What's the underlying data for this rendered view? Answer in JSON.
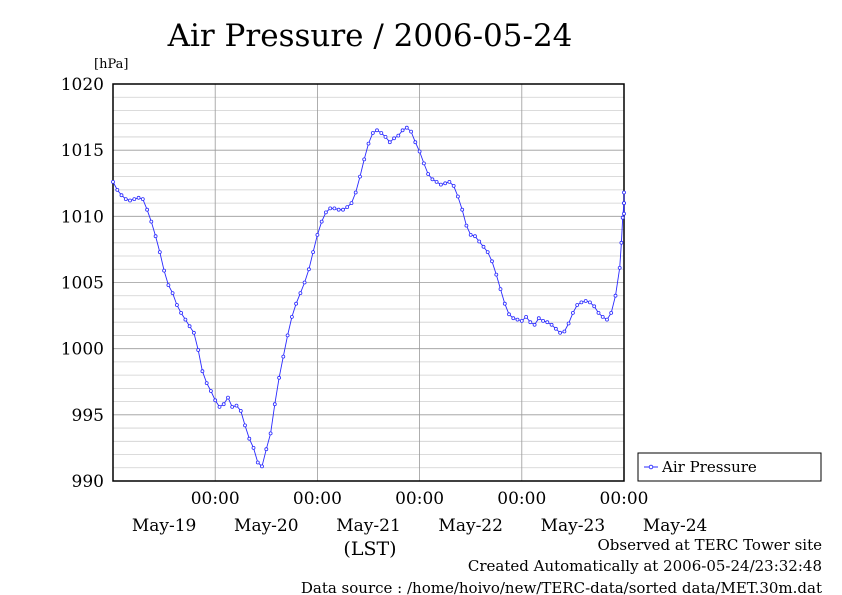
{
  "chart_data": {
    "type": "line",
    "title": "Air Pressure / 2006-05-24",
    "ylabel": "[hPa]",
    "xlabel": "(LST)",
    "ylim": [
      990,
      1020
    ],
    "yticks": [
      "990",
      "995",
      "1000",
      "1005",
      "1010",
      "1015",
      "1020"
    ],
    "xlim_hours": [
      -96,
      24
    ],
    "time_ticks": [
      "00:00",
      "00:00",
      "00:00",
      "00:00",
      "00:00"
    ],
    "date_labels": [
      "May-19",
      "May-20",
      "May-21",
      "May-22",
      "May-23",
      "May-24"
    ],
    "grid": true,
    "legend_position": "right",
    "series": [
      {
        "name": "Air Pressure",
        "color": "#2a2aff",
        "marker": "circle",
        "points": [
          [
            -96,
            1012.6
          ],
          [
            -95,
            1012.0
          ],
          [
            -94,
            1011.6
          ],
          [
            -93,
            1011.3
          ],
          [
            -92,
            1011.2
          ],
          [
            -91,
            1011.3
          ],
          [
            -90,
            1011.4
          ],
          [
            -89,
            1011.3
          ],
          [
            -88,
            1010.5
          ],
          [
            -87,
            1009.6
          ],
          [
            -86,
            1008.5
          ],
          [
            -85,
            1007.3
          ],
          [
            -84,
            1005.9
          ],
          [
            -83,
            1004.8
          ],
          [
            -82,
            1004.2
          ],
          [
            -81,
            1003.3
          ],
          [
            -80,
            1002.7
          ],
          [
            -79,
            1002.2
          ],
          [
            -78,
            1001.7
          ],
          [
            -77,
            1001.2
          ],
          [
            -76,
            999.9
          ],
          [
            -75,
            998.3
          ],
          [
            -74,
            997.4
          ],
          [
            -73,
            996.8
          ],
          [
            -72,
            996.1
          ],
          [
            -71,
            995.6
          ],
          [
            -70,
            995.8
          ],
          [
            -69,
            996.3
          ],
          [
            -68,
            995.6
          ],
          [
            -67,
            995.7
          ],
          [
            -66,
            995.3
          ],
          [
            -65,
            994.2
          ],
          [
            -64,
            993.2
          ],
          [
            -63,
            992.5
          ],
          [
            -62,
            991.4
          ],
          [
            -61,
            991.1
          ],
          [
            -60,
            992.4
          ],
          [
            -59,
            993.6
          ],
          [
            -58,
            995.8
          ],
          [
            -57,
            997.8
          ],
          [
            -56,
            999.4
          ],
          [
            -55,
            1001.0
          ],
          [
            -54,
            1002.4
          ],
          [
            -53,
            1003.4
          ],
          [
            -52,
            1004.2
          ],
          [
            -51,
            1005.0
          ],
          [
            -50,
            1006.0
          ],
          [
            -49,
            1007.3
          ],
          [
            -48,
            1008.6
          ],
          [
            -47,
            1009.6
          ],
          [
            -46,
            1010.3
          ],
          [
            -45,
            1010.6
          ],
          [
            -44,
            1010.6
          ],
          [
            -43,
            1010.5
          ],
          [
            -42,
            1010.5
          ],
          [
            -41,
            1010.7
          ],
          [
            -40,
            1011.0
          ],
          [
            -39,
            1011.8
          ],
          [
            -38,
            1013.0
          ],
          [
            -37,
            1014.3
          ],
          [
            -36,
            1015.5
          ],
          [
            -35,
            1016.3
          ],
          [
            -34,
            1016.5
          ],
          [
            -33,
            1016.3
          ],
          [
            -32,
            1016.0
          ],
          [
            -31,
            1015.6
          ],
          [
            -30,
            1015.9
          ],
          [
            -29,
            1016.1
          ],
          [
            -28,
            1016.5
          ],
          [
            -27,
            1016.7
          ],
          [
            -26,
            1016.4
          ],
          [
            -25,
            1015.6
          ],
          [
            -24,
            1014.9
          ],
          [
            -23,
            1014.0
          ],
          [
            -22,
            1013.2
          ],
          [
            -21,
            1012.8
          ],
          [
            -20,
            1012.6
          ],
          [
            -19,
            1012.4
          ],
          [
            -18,
            1012.5
          ],
          [
            -17,
            1012.6
          ],
          [
            -16,
            1012.3
          ],
          [
            -15,
            1011.5
          ],
          [
            -14,
            1010.5
          ],
          [
            -13,
            1009.3
          ],
          [
            -12,
            1008.6
          ],
          [
            -11,
            1008.5
          ],
          [
            -10,
            1008.1
          ],
          [
            -9,
            1007.7
          ],
          [
            -8,
            1007.3
          ],
          [
            -7,
            1006.6
          ],
          [
            -6,
            1005.6
          ],
          [
            -5,
            1004.5
          ],
          [
            -4,
            1003.4
          ],
          [
            -3,
            1002.6
          ],
          [
            -2,
            1002.3
          ],
          [
            -1,
            1002.2
          ],
          [
            0,
            1002.1
          ],
          [
            1,
            1002.4
          ],
          [
            2,
            1002.0
          ],
          [
            3,
            1001.8
          ],
          [
            4,
            1002.3
          ],
          [
            5,
            1002.1
          ],
          [
            6,
            1002.0
          ],
          [
            7,
            1001.8
          ],
          [
            8,
            1001.5
          ],
          [
            9,
            1001.2
          ],
          [
            10,
            1001.3
          ],
          [
            11,
            1001.9
          ],
          [
            12,
            1002.7
          ],
          [
            13,
            1003.3
          ],
          [
            14,
            1003.5
          ],
          [
            15,
            1003.6
          ],
          [
            16,
            1003.5
          ],
          [
            17,
            1003.2
          ],
          [
            18,
            1002.7
          ],
          [
            19,
            1002.4
          ],
          [
            20,
            1002.2
          ],
          [
            21,
            1002.7
          ],
          [
            22,
            1004.0
          ],
          [
            23,
            1006.1
          ],
          [
            23.4,
            1008.0
          ],
          [
            23.7,
            1009.9
          ],
          [
            24,
            1011.0
          ],
          [
            24,
            1011.0
          ],
          [
            24,
            1010.2
          ],
          [
            24,
            1011.8
          ]
        ]
      }
    ]
  },
  "footer": {
    "line1": "Observed at TERC Tower site",
    "line2": "Created Automatically at 2006-05-24/23:32:48",
    "line3": "Data source : /home/hoivo/new/TERC-data/sorted  data/MET.30m.dat"
  }
}
